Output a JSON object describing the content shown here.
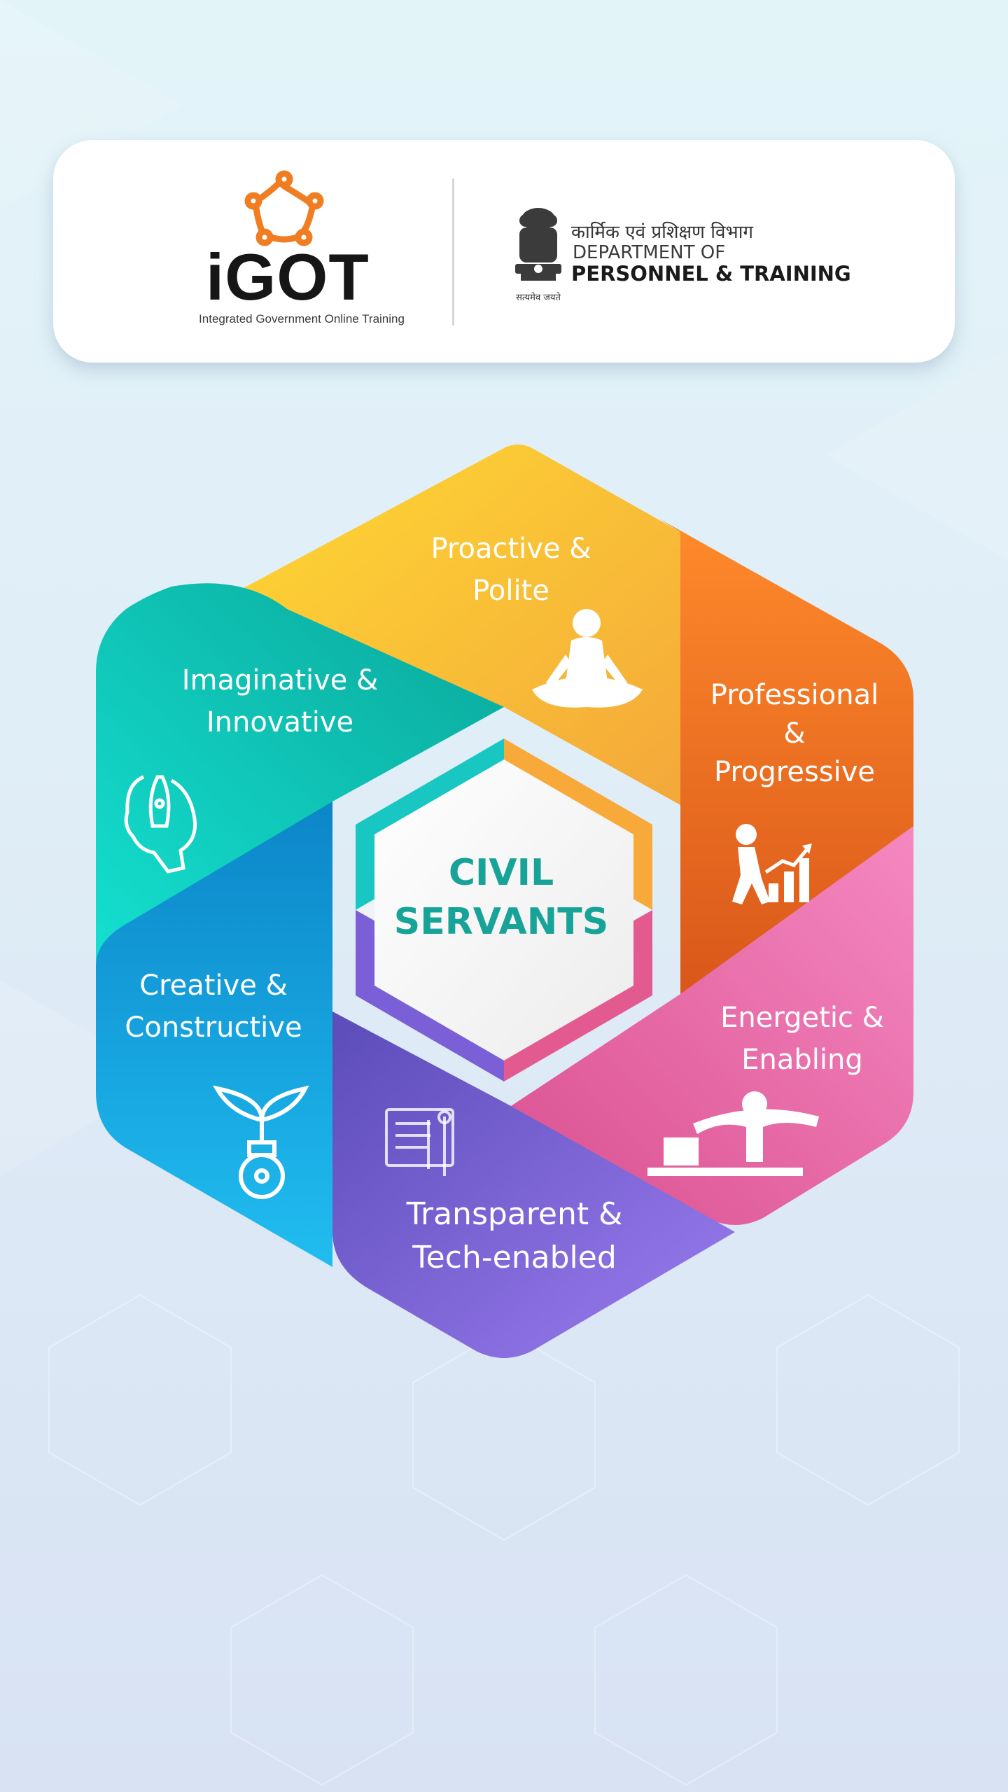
{
  "header": {
    "igot_logo_text": "iGOT",
    "igot_tagline": "Integrated Government Online Training",
    "dept_hindi": "कार्मिक एवं प्रशिक्षण विभाग",
    "dept_line1": "DEPARTMENT OF",
    "dept_line2": "PERSONNEL & TRAINING",
    "emblem_motto": "सत्यमेव जयते"
  },
  "center": {
    "line1": "CIVIL",
    "line2": "SERVANTS",
    "color": "#17a398"
  },
  "segments": [
    {
      "line1": "Proactive &",
      "line2": "Polite",
      "icon": "meditation-icon",
      "color": "#f8b133"
    },
    {
      "line1": "Professional",
      "line2": "&",
      "line3": "Progressive",
      "icon": "growth-chart-icon",
      "color": "#f26f21"
    },
    {
      "line1": "Energetic &",
      "line2": "Enabling",
      "icon": "office-desk-person-icon",
      "color": "#ec5fa0"
    },
    {
      "line1": "Transparent &",
      "line2": "Tech-enabled",
      "icon": "tools-icon",
      "color": "#7a5fd6"
    },
    {
      "line1": "Creative &",
      "line2": "Constructive",
      "icon": "bulb-sprout-icon",
      "color": "#0593d6"
    },
    {
      "line1": "Imaginative &",
      "line2": "Innovative",
      "icon": "rocket-head-icon",
      "color": "#11c2b6"
    }
  ]
}
